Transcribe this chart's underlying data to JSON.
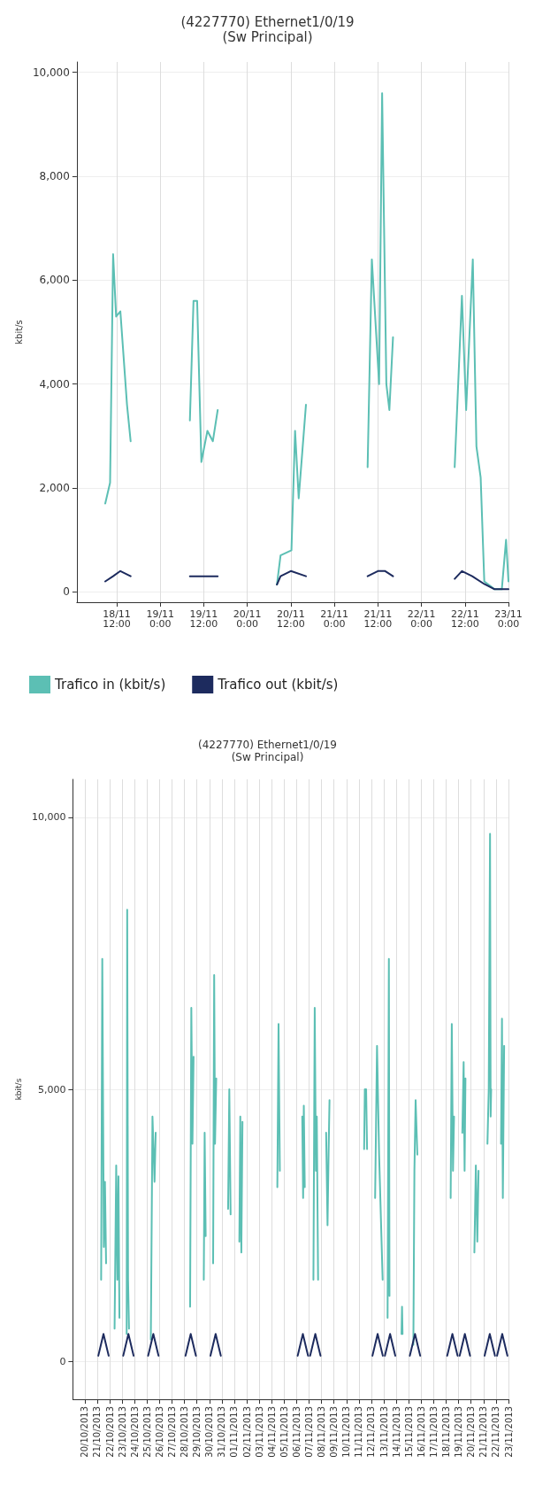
{
  "chart_data": [
    {
      "type": "line",
      "title": "(4227770) Ethernet1/0/19",
      "subtitle": "(Sw Principal)",
      "ylabel": "kbit/s",
      "xlim": [
        "2013-11-18T01:00",
        "2013-11-23T00:00"
      ],
      "xticks": [
        {
          "value": "2013-11-18T12:00",
          "label": "18/11\n12:00"
        },
        {
          "value": "2013-11-19T00:00",
          "label": "19/11\n0:00"
        },
        {
          "value": "2013-11-19T12:00",
          "label": "19/11\n12:00"
        },
        {
          "value": "2013-11-20T00:00",
          "label": "20/11\n0:00"
        },
        {
          "value": "2013-11-20T12:00",
          "label": "20/11\n12:00"
        },
        {
          "value": "2013-11-21T00:00",
          "label": "21/11\n0:00"
        },
        {
          "value": "2013-11-21T12:00",
          "label": "21/11\n12:00"
        },
        {
          "value": "2013-11-22T00:00",
          "label": "22/11\n0:00"
        },
        {
          "value": "2013-11-22T12:00",
          "label": "22/11\n12:00"
        },
        {
          "value": "2013-11-23T00:00",
          "label": "23/11\n0:00"
        }
      ],
      "ylim": [
        -200,
        10200
      ],
      "yticks": [
        0,
        {
          "value": 2000,
          "label": "2,000"
        },
        {
          "value": 4000,
          "label": "4,000"
        },
        {
          "value": 6000,
          "label": "6,000"
        },
        {
          "value": 8000,
          "label": "8,000"
        },
        {
          "value": 10000,
          "label": "10,000"
        }
      ],
      "grid": true,
      "legend": "bottom left",
      "series": [
        {
          "name": "Trafico in (kbit/s)",
          "color": "#5cbfb4",
          "x": [
            "2013-11-18T08:50",
            "2013-11-18T10:10",
            "2013-11-18T11:00",
            "2013-11-18T11:50",
            "2013-11-18T13:00",
            "2013-11-18T14:50",
            "2013-11-18T15:50",
            "2013-11-18T20:00",
            "2013-11-19T08:10",
            "2013-11-19T09:10",
            "2013-11-19T10:10",
            "2013-11-19T11:20",
            "2013-11-19T13:00",
            "2013-11-19T14:30",
            "2013-11-19T15:50",
            "2013-11-19T20:00",
            "2013-11-20T08:10",
            "2013-11-20T09:10",
            "2013-11-20T12:10",
            "2013-11-20T13:10",
            "2013-11-20T14:10",
            "2013-11-20T16:10",
            "2013-11-20T20:00",
            "2013-11-21T09:10",
            "2013-11-21T10:20",
            "2013-11-21T12:20",
            "2013-11-21T13:10",
            "2013-11-21T14:20",
            "2013-11-21T15:10",
            "2013-11-21T16:10",
            "2013-11-21T20:00",
            "2013-11-22T09:10",
            "2013-11-22T11:10",
            "2013-11-22T12:20",
            "2013-11-22T14:10",
            "2013-11-22T15:10",
            "2013-11-22T16:20",
            "2013-11-22T17:20",
            "2013-11-22T20:10",
            "2013-11-22T22:10",
            "2013-11-22T23:20",
            "2013-11-23T00:00"
          ],
          "values": [
            1700,
            2100,
            6500,
            5300,
            5400,
            3600,
            2900,
            null,
            3300,
            5600,
            5600,
            2500,
            3100,
            2900,
            3500,
            null,
            140,
            700,
            800,
            3100,
            1800,
            3600,
            null,
            2400,
            6400,
            4000,
            9600,
            4000,
            3500,
            4900,
            null,
            2400,
            5700,
            3500,
            6400,
            2800,
            2200,
            200,
            50,
            50,
            1000,
            200
          ]
        },
        {
          "name": "Trafico out (kbit/s)",
          "color": "#1d2b5e",
          "x": [
            "2013-11-18T08:50",
            "2013-11-18T11:00",
            "2013-11-18T13:00",
            "2013-11-18T15:50",
            "2013-11-18T20:00",
            "2013-11-19T08:10",
            "2013-11-19T12:00",
            "2013-11-19T15:50",
            "2013-11-19T20:00",
            "2013-11-20T08:10",
            "2013-11-20T09:10",
            "2013-11-20T12:00",
            "2013-11-20T16:10",
            "2013-11-20T20:00",
            "2013-11-21T09:10",
            "2013-11-21T12:00",
            "2013-11-21T14:00",
            "2013-11-21T16:10",
            "2013-11-21T20:00",
            "2013-11-22T09:10",
            "2013-11-22T11:10",
            "2013-11-22T14:00",
            "2013-11-22T17:20",
            "2013-11-22T20:10",
            "2013-11-23T00:00"
          ],
          "values": [
            200,
            300,
            400,
            300,
            null,
            300,
            300,
            300,
            null,
            140,
            300,
            400,
            300,
            null,
            300,
            400,
            400,
            300,
            null,
            250,
            400,
            300,
            150,
            50,
            50
          ]
        }
      ]
    },
    {
      "type": "line",
      "title": "(4227770) Ethernet1/0/19",
      "subtitle": "(Sw Principal)",
      "ylabel": "kbit/s",
      "xlim": [
        "2013-10-19T01:00",
        "2013-11-23T00:00"
      ],
      "xticks": [
        {
          "value": "2013-10-20",
          "label": "20/10/2013"
        },
        {
          "value": "2013-10-21",
          "label": "21/10/2013"
        },
        {
          "value": "2013-10-22",
          "label": "22/10/2013"
        },
        {
          "value": "2013-10-23",
          "label": "23/10/2013"
        },
        {
          "value": "2013-10-24",
          "label": "24/10/2013"
        },
        {
          "value": "2013-10-25",
          "label": "25/10/2013"
        },
        {
          "value": "2013-10-26",
          "label": "26/10/2013"
        },
        {
          "value": "2013-10-27",
          "label": "27/10/2013"
        },
        {
          "value": "2013-10-28",
          "label": "28/10/2013"
        },
        {
          "value": "2013-10-29",
          "label": "29/10/2013"
        },
        {
          "value": "2013-10-30",
          "label": "30/10/2013"
        },
        {
          "value": "2013-10-31",
          "label": "31/10/2013"
        },
        {
          "value": "2013-11-01",
          "label": "01/11/2013"
        },
        {
          "value": "2013-11-02",
          "label": "02/11/2013"
        },
        {
          "value": "2013-11-03",
          "label": "03/11/2013"
        },
        {
          "value": "2013-11-04",
          "label": "04/11/2013"
        },
        {
          "value": "2013-11-05",
          "label": "05/11/2013"
        },
        {
          "value": "2013-11-06",
          "label": "06/11/2013"
        },
        {
          "value": "2013-11-07",
          "label": "07/11/2013"
        },
        {
          "value": "2013-11-08",
          "label": "08/11/2013"
        },
        {
          "value": "2013-11-09",
          "label": "09/11/2013"
        },
        {
          "value": "2013-11-10",
          "label": "10/11/2013"
        },
        {
          "value": "2013-11-11",
          "label": "11/11/2013"
        },
        {
          "value": "2013-11-12",
          "label": "12/11/2013"
        },
        {
          "value": "2013-11-13",
          "label": "13/11/2013"
        },
        {
          "value": "2013-11-14",
          "label": "14/11/2013"
        },
        {
          "value": "2013-11-15",
          "label": "15/11/2013"
        },
        {
          "value": "2013-11-16",
          "label": "16/11/2013"
        },
        {
          "value": "2013-11-17",
          "label": "17/11/2013"
        },
        {
          "value": "2013-11-18",
          "label": "18/11/2013"
        },
        {
          "value": "2013-11-19",
          "label": "19/11/2013"
        },
        {
          "value": "2013-11-20",
          "label": "20/11/2013"
        },
        {
          "value": "2013-11-21",
          "label": "21/11/2013"
        },
        {
          "value": "2013-11-22",
          "label": "22/11/2013"
        },
        {
          "value": "2013-11-23",
          "label": "23/11/2013"
        }
      ],
      "ylim": [
        -700,
        10700
      ],
      "yticks": [
        0,
        {
          "value": 5000,
          "label": "5,000"
        },
        {
          "value": 10000,
          "label": "10,000"
        }
      ],
      "grid": true,
      "series": [
        {
          "color": "#5cbfb4",
          "x": [
            "2013-10-21T07:30",
            "2013-10-21T09:40",
            "2013-10-21T12:40",
            "2013-10-21T14:50",
            "2013-10-21T17:00",
            "2013-10-21T20:00",
            "2013-10-22T09:20",
            "2013-10-22T12:30",
            "2013-10-22T14:40",
            "2013-10-22T16:50",
            "2013-10-22T18:40",
            "2013-10-22T21:00",
            "2013-10-23T08:40",
            "2013-10-23T09:40",
            "2013-10-23T11:20",
            "2013-10-23T13:10",
            "2013-10-23T20:00",
            "2013-10-25T07:10",
            "2013-10-25T10:20",
            "2013-10-25T14:20",
            "2013-10-25T16:30",
            "2013-10-25T20:00",
            "2013-10-28T10:50",
            "2013-10-28T13:10",
            "2013-10-28T15:20",
            "2013-10-28T17:30",
            "2013-10-28T21:00",
            "2013-10-29T13:10",
            "2013-10-29T14:50",
            "2013-10-29T16:50",
            "2013-10-29T21:00",
            "2013-10-30T07:10",
            "2013-10-30T09:10",
            "2013-10-30T10:50",
            "2013-10-30T13:10",
            "2013-10-30T20:00",
            "2013-10-31T12:00",
            "2013-10-31T14:20",
            "2013-10-31T16:50",
            "2013-10-31T21:00",
            "2013-11-01T09:40",
            "2013-11-01T11:30",
            "2013-11-01T13:30",
            "2013-11-01T15:40",
            "2013-11-01T20:00",
            "2013-11-04T10:50",
            "2013-11-04T13:10",
            "2013-11-04T15:40",
            "2013-11-04T20:00",
            "2013-11-06T10:50",
            "2013-11-06T12:30",
            "2013-11-06T13:50",
            "2013-11-06T15:40",
            "2013-11-06T20:00",
            "2013-11-07T08:20",
            "2013-11-07T10:50",
            "2013-11-07T13:10",
            "2013-11-07T14:50",
            "2013-11-07T17:20",
            "2013-11-07T21:00",
            "2013-11-08T08:50",
            "2013-11-08T11:30",
            "2013-11-08T13:30",
            "2013-11-08T15:20",
            "2013-11-08T20:00",
            "2013-11-11T10:00",
            "2013-11-11T11:20",
            "2013-11-11T13:50",
            "2013-11-11T15:40",
            "2013-11-11T20:00",
            "2013-11-12T07:10",
            "2013-11-12T10:50",
            "2013-11-12T14:50",
            "2013-11-12T21:40",
            "2013-11-13T02:00",
            "2013-11-13T07:10",
            "2013-11-13T09:40",
            "2013-11-13T10:50",
            "2013-11-13T20:00",
            "2013-11-14T10:00",
            "2013-11-14T11:00",
            "2013-11-14T12:00",
            "2013-11-14T20:00",
            "2013-11-15T08:50",
            "2013-11-15T10:50",
            "2013-11-15T13:10",
            "2013-11-15T16:30",
            "2013-11-15T20:00",
            "2013-11-18T08:40",
            "2013-11-18T10:50",
            "2013-11-18T13:10",
            "2013-11-18T15:10",
            "2013-11-18T20:00",
            "2013-11-19T07:10",
            "2013-11-19T09:40",
            "2013-11-19T11:30",
            "2013-11-19T13:10",
            "2013-11-19T20:00",
            "2013-11-20T06:20",
            "2013-11-20T09:10",
            "2013-11-20T12:00",
            "2013-11-20T14:20",
            "2013-11-20T20:00",
            "2013-11-21T07:30",
            "2013-11-21T10:00",
            "2013-11-21T12:30",
            "2013-11-21T13:40",
            "2013-11-21T14:40",
            "2013-11-21T20:00",
            "2013-11-22T09:40",
            "2013-11-22T11:30",
            "2013-11-22T13:10",
            "2013-11-22T15:40"
          ],
          "values": [
            1500,
            7400,
            2100,
            3300,
            1800,
            null,
            600,
            3600,
            1500,
            3400,
            800,
            null,
            500,
            8300,
            1500,
            600,
            null,
            400,
            4500,
            3300,
            4200,
            null,
            1000,
            6500,
            4000,
            5600,
            null,
            1500,
            4200,
            2300,
            null,
            1800,
            7100,
            4000,
            5200,
            null,
            2800,
            5000,
            2700,
            null,
            2200,
            4500,
            2000,
            4400,
            null,
            3200,
            6200,
            3500,
            null,
            4500,
            3000,
            4700,
            3200,
            null,
            1500,
            6500,
            3500,
            4500,
            1500,
            null,
            4200,
            2500,
            3800,
            4800,
            null,
            3900,
            5000,
            5000,
            3900,
            null,
            3000,
            5800,
            3800,
            1500,
            null,
            800,
            7400,
            1200,
            null,
            500,
            1000,
            500,
            null,
            300,
            3500,
            4800,
            3800,
            null,
            3000,
            6200,
            3500,
            4500,
            null,
            4200,
            5500,
            3500,
            5200,
            null,
            2000,
            3600,
            2200,
            3500,
            null,
            4000,
            5000,
            9700,
            4500,
            5000,
            null,
            4000,
            6300,
            3000,
            5800
          ]
        },
        {
          "color": "#1d2b5e",
          "x": [
            "2013-10-21T02:00",
            "2013-10-21T12:00",
            "2013-10-21T22:00",
            "2013-10-22T23:00",
            "2013-10-23T02:00",
            "2013-10-23T12:00",
            "2013-10-23T22:00",
            "2013-10-24T23:00",
            "2013-10-25T02:00",
            "2013-10-25T12:00",
            "2013-10-25T22:00",
            "2013-10-27T23:00",
            "2013-10-28T02:00",
            "2013-10-28T12:00",
            "2013-10-28T22:00",
            "2013-10-29T23:00",
            "2013-10-30T02:00",
            "2013-10-30T12:00",
            "2013-10-30T22:00",
            "2013-10-31T23:00",
            "2013-11-06T02:00",
            "2013-11-06T12:00",
            "2013-11-06T22:00",
            "2013-11-06T23:00",
            "2013-11-07T02:00",
            "2013-11-07T12:00",
            "2013-11-07T22:00",
            "2013-11-11T23:00",
            "2013-11-12T02:00",
            "2013-11-12T12:00",
            "2013-11-12T22:00",
            "2013-11-12T23:00",
            "2013-11-13T02:00",
            "2013-11-13T12:00",
            "2013-11-13T22:00",
            "2013-11-14T23:00",
            "2013-11-15T02:00",
            "2013-11-15T12:00",
            "2013-11-15T22:00",
            "2013-11-17T23:00",
            "2013-11-18T02:00",
            "2013-11-18T12:00",
            "2013-11-18T22:00",
            "2013-11-18T23:00",
            "2013-11-19T02:00",
            "2013-11-19T12:00",
            "2013-11-19T22:00",
            "2013-11-20T23:00",
            "2013-11-21T02:00",
            "2013-11-21T12:00",
            "2013-11-21T22:00",
            "2013-11-21T23:00",
            "2013-11-22T02:00",
            "2013-11-22T12:00",
            "2013-11-22T22:00"
          ],
          "values": [
            100,
            500,
            100,
            null,
            100,
            500,
            100,
            null,
            100,
            500,
            100,
            null,
            100,
            500,
            100,
            null,
            100,
            500,
            100,
            null,
            100,
            500,
            100,
            null,
            100,
            500,
            100,
            null,
            100,
            500,
            100,
            null,
            100,
            500,
            100,
            null,
            100,
            500,
            100,
            null,
            100,
            500,
            100,
            null,
            100,
            500,
            100,
            null,
            100,
            500,
            100,
            null,
            100,
            500,
            100
          ]
        }
      ]
    }
  ]
}
